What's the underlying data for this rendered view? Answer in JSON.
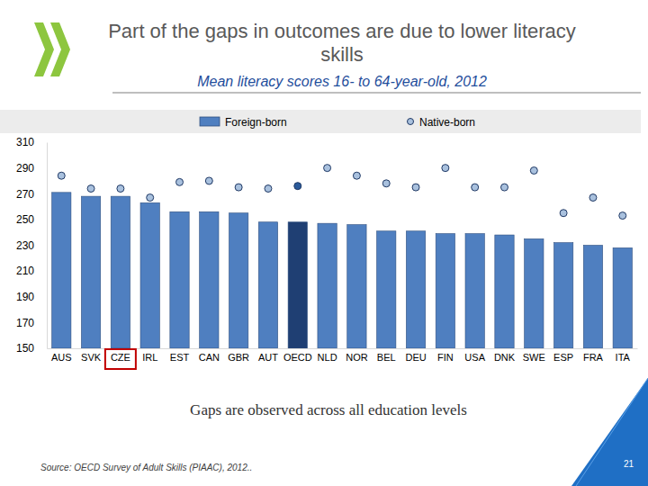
{
  "chart_data": {
    "type": "bar",
    "title": "Part of the gaps in outcomes are due to lower literacy skills",
    "subtitle": "Mean literacy scores 16- to 64-year-old, 2012",
    "annotations": [
      "Gaps are observed across all education levels",
      "Source: OECD Survey of Adult Skills (PIAAC), 2012..",
      "21"
    ],
    "categories": [
      "AUS",
      "SVK",
      "CZE",
      "IRL",
      "EST",
      "CAN",
      "GBR",
      "AUT",
      "OECD",
      "NLD",
      "NOR",
      "BEL",
      "DEU",
      "FIN",
      "USA",
      "DNK",
      "SWE",
      "ESP",
      "FRA",
      "ITA"
    ],
    "series": [
      {
        "name": "Foreign-born",
        "type": "bar",
        "color": "#4f7fc0",
        "colors": [
          "#4f7fc0",
          "#4f7fc0",
          "#4f7fc0",
          "#4f7fc0",
          "#4f7fc0",
          "#4f7fc0",
          "#4f7fc0",
          "#4f7fc0",
          "#1f3f73",
          "#4f7fc0",
          "#4f7fc0",
          "#4f7fc0",
          "#4f7fc0",
          "#4f7fc0",
          "#4f7fc0",
          "#4f7fc0",
          "#4f7fc0",
          "#4f7fc0",
          "#4f7fc0",
          "#4f7fc0"
        ],
        "values": [
          271,
          268,
          268,
          263,
          256,
          256,
          255,
          248,
          248,
          247,
          246,
          241,
          241,
          239,
          239,
          238,
          235,
          232,
          230,
          228
        ]
      },
      {
        "name": "Native-born",
        "type": "scatter",
        "marker": "circle",
        "color": "#a9c1de",
        "colors": [
          "#a9c1de",
          "#a9c1de",
          "#a9c1de",
          "#a9c1de",
          "#a9c1de",
          "#a9c1de",
          "#a9c1de",
          "#a9c1de",
          "#2a5a9a",
          "#a9c1de",
          "#a9c1de",
          "#a9c1de",
          "#a9c1de",
          "#a9c1de",
          "#a9c1de",
          "#a9c1de",
          "#a9c1de",
          "#a9c1de",
          "#a9c1de",
          "#a9c1de"
        ],
        "values": [
          284,
          274,
          274,
          267,
          279,
          280,
          275,
          274,
          276,
          290,
          284,
          278,
          275,
          290,
          275,
          275,
          288,
          255,
          267,
          253
        ]
      }
    ],
    "ylim": [
      150,
      310
    ],
    "yticks": [
      150,
      170,
      190,
      210,
      230,
      250,
      270,
      290,
      310
    ],
    "grid": false,
    "legend": "top"
  }
}
